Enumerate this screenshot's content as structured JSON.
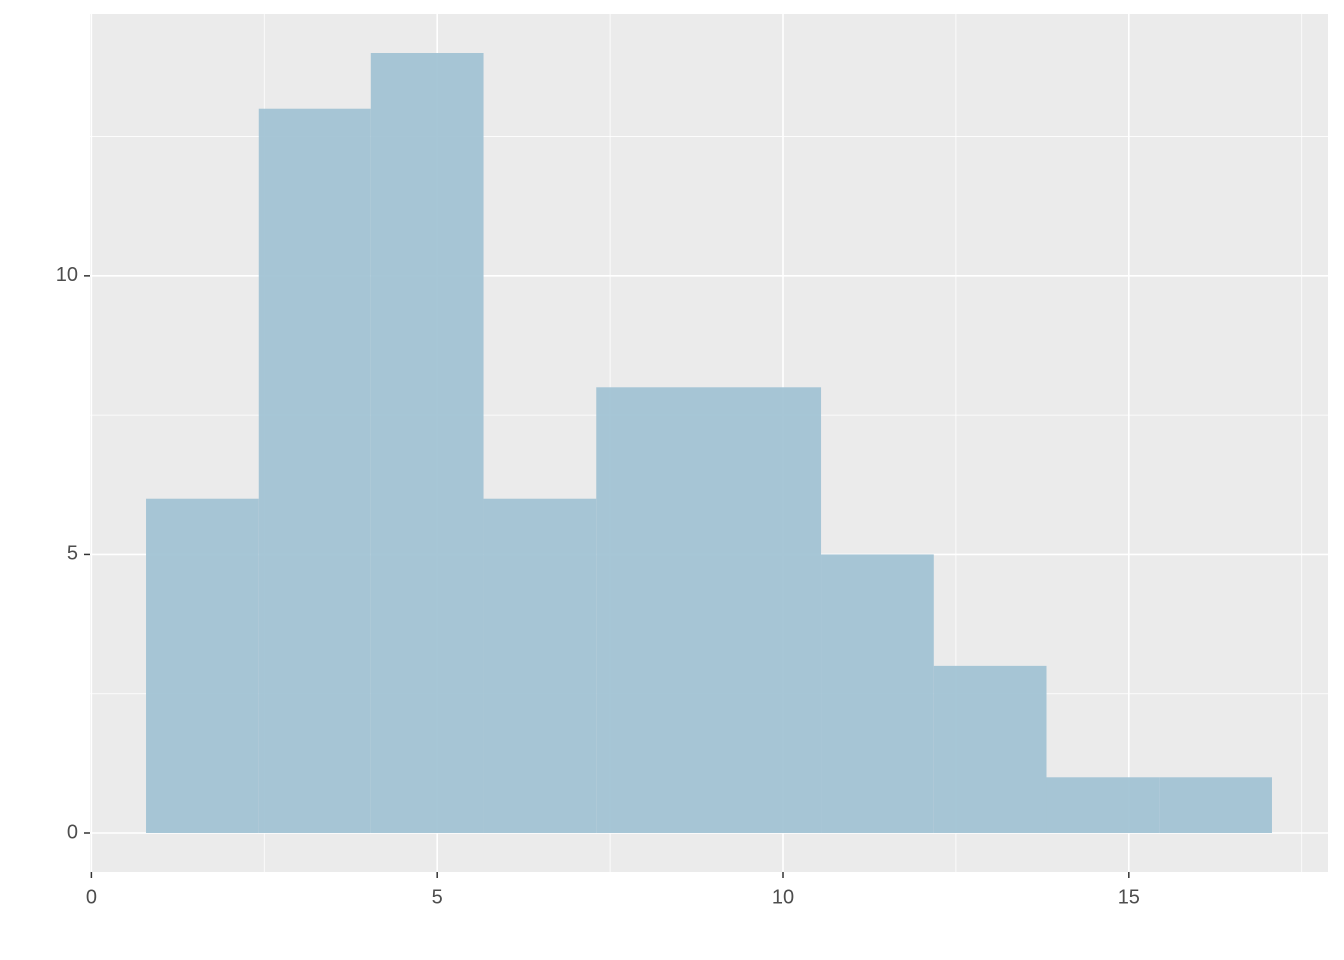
{
  "chart_data": {
    "type": "histogram",
    "bins": [
      0.79,
      2.42,
      4.04,
      5.67,
      7.3,
      8.93,
      10.55,
      12.18,
      13.81,
      15.44,
      17.07
    ],
    "values": [
      6,
      13,
      14,
      6,
      8,
      8,
      5,
      3,
      1,
      1
    ],
    "color": "#a0c1d3",
    "xlim": [
      -0.02,
      17.88
    ],
    "xticks": [
      0,
      5,
      10,
      15
    ],
    "ylim": [
      -0.7,
      14.7
    ],
    "yticks": [
      0,
      5,
      10
    ],
    "x_minor_grid": [
      2.5,
      7.5,
      12.5,
      17.5
    ],
    "y_minor_grid": [
      2.5,
      7.5,
      12.5
    ],
    "grid": true
  }
}
